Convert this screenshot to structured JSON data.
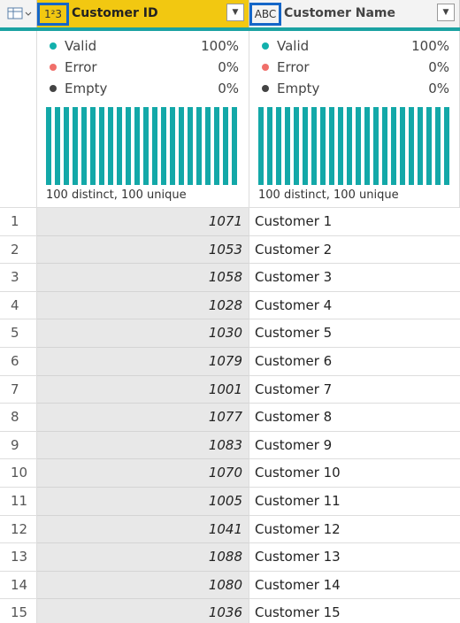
{
  "columns": [
    {
      "type_icon": "1²3",
      "name": "Customer ID",
      "profile": {
        "valid_label": "Valid",
        "valid": "100%",
        "error_label": "Error",
        "error": "0%",
        "empty_label": "Empty",
        "empty": "0%",
        "summary": "100 distinct, 100 unique"
      }
    },
    {
      "type_icon": "ABC",
      "name": "Customer Name",
      "profile": {
        "valid_label": "Valid",
        "valid": "100%",
        "error_label": "Error",
        "error": "0%",
        "empty_label": "Empty",
        "empty": "0%",
        "summary": "100 distinct, 100 unique"
      }
    }
  ],
  "rows": [
    {
      "index": 1,
      "customer_id": 1071,
      "customer_name": "Customer 1"
    },
    {
      "index": 2,
      "customer_id": 1053,
      "customer_name": "Customer 2"
    },
    {
      "index": 3,
      "customer_id": 1058,
      "customer_name": "Customer 3"
    },
    {
      "index": 4,
      "customer_id": 1028,
      "customer_name": "Customer 4"
    },
    {
      "index": 5,
      "customer_id": 1030,
      "customer_name": "Customer 5"
    },
    {
      "index": 6,
      "customer_id": 1079,
      "customer_name": "Customer 6"
    },
    {
      "index": 7,
      "customer_id": 1001,
      "customer_name": "Customer 7"
    },
    {
      "index": 8,
      "customer_id": 1077,
      "customer_name": "Customer 8"
    },
    {
      "index": 9,
      "customer_id": 1083,
      "customer_name": "Customer 9"
    },
    {
      "index": 10,
      "customer_id": 1070,
      "customer_name": "Customer 10"
    },
    {
      "index": 11,
      "customer_id": 1005,
      "customer_name": "Customer 11"
    },
    {
      "index": 12,
      "customer_id": 1041,
      "customer_name": "Customer 12"
    },
    {
      "index": 13,
      "customer_id": 1088,
      "customer_name": "Customer 13"
    },
    {
      "index": 14,
      "customer_id": 1080,
      "customer_name": "Customer 14"
    },
    {
      "index": 15,
      "customer_id": 1036,
      "customer_name": "Customer 15"
    }
  ]
}
